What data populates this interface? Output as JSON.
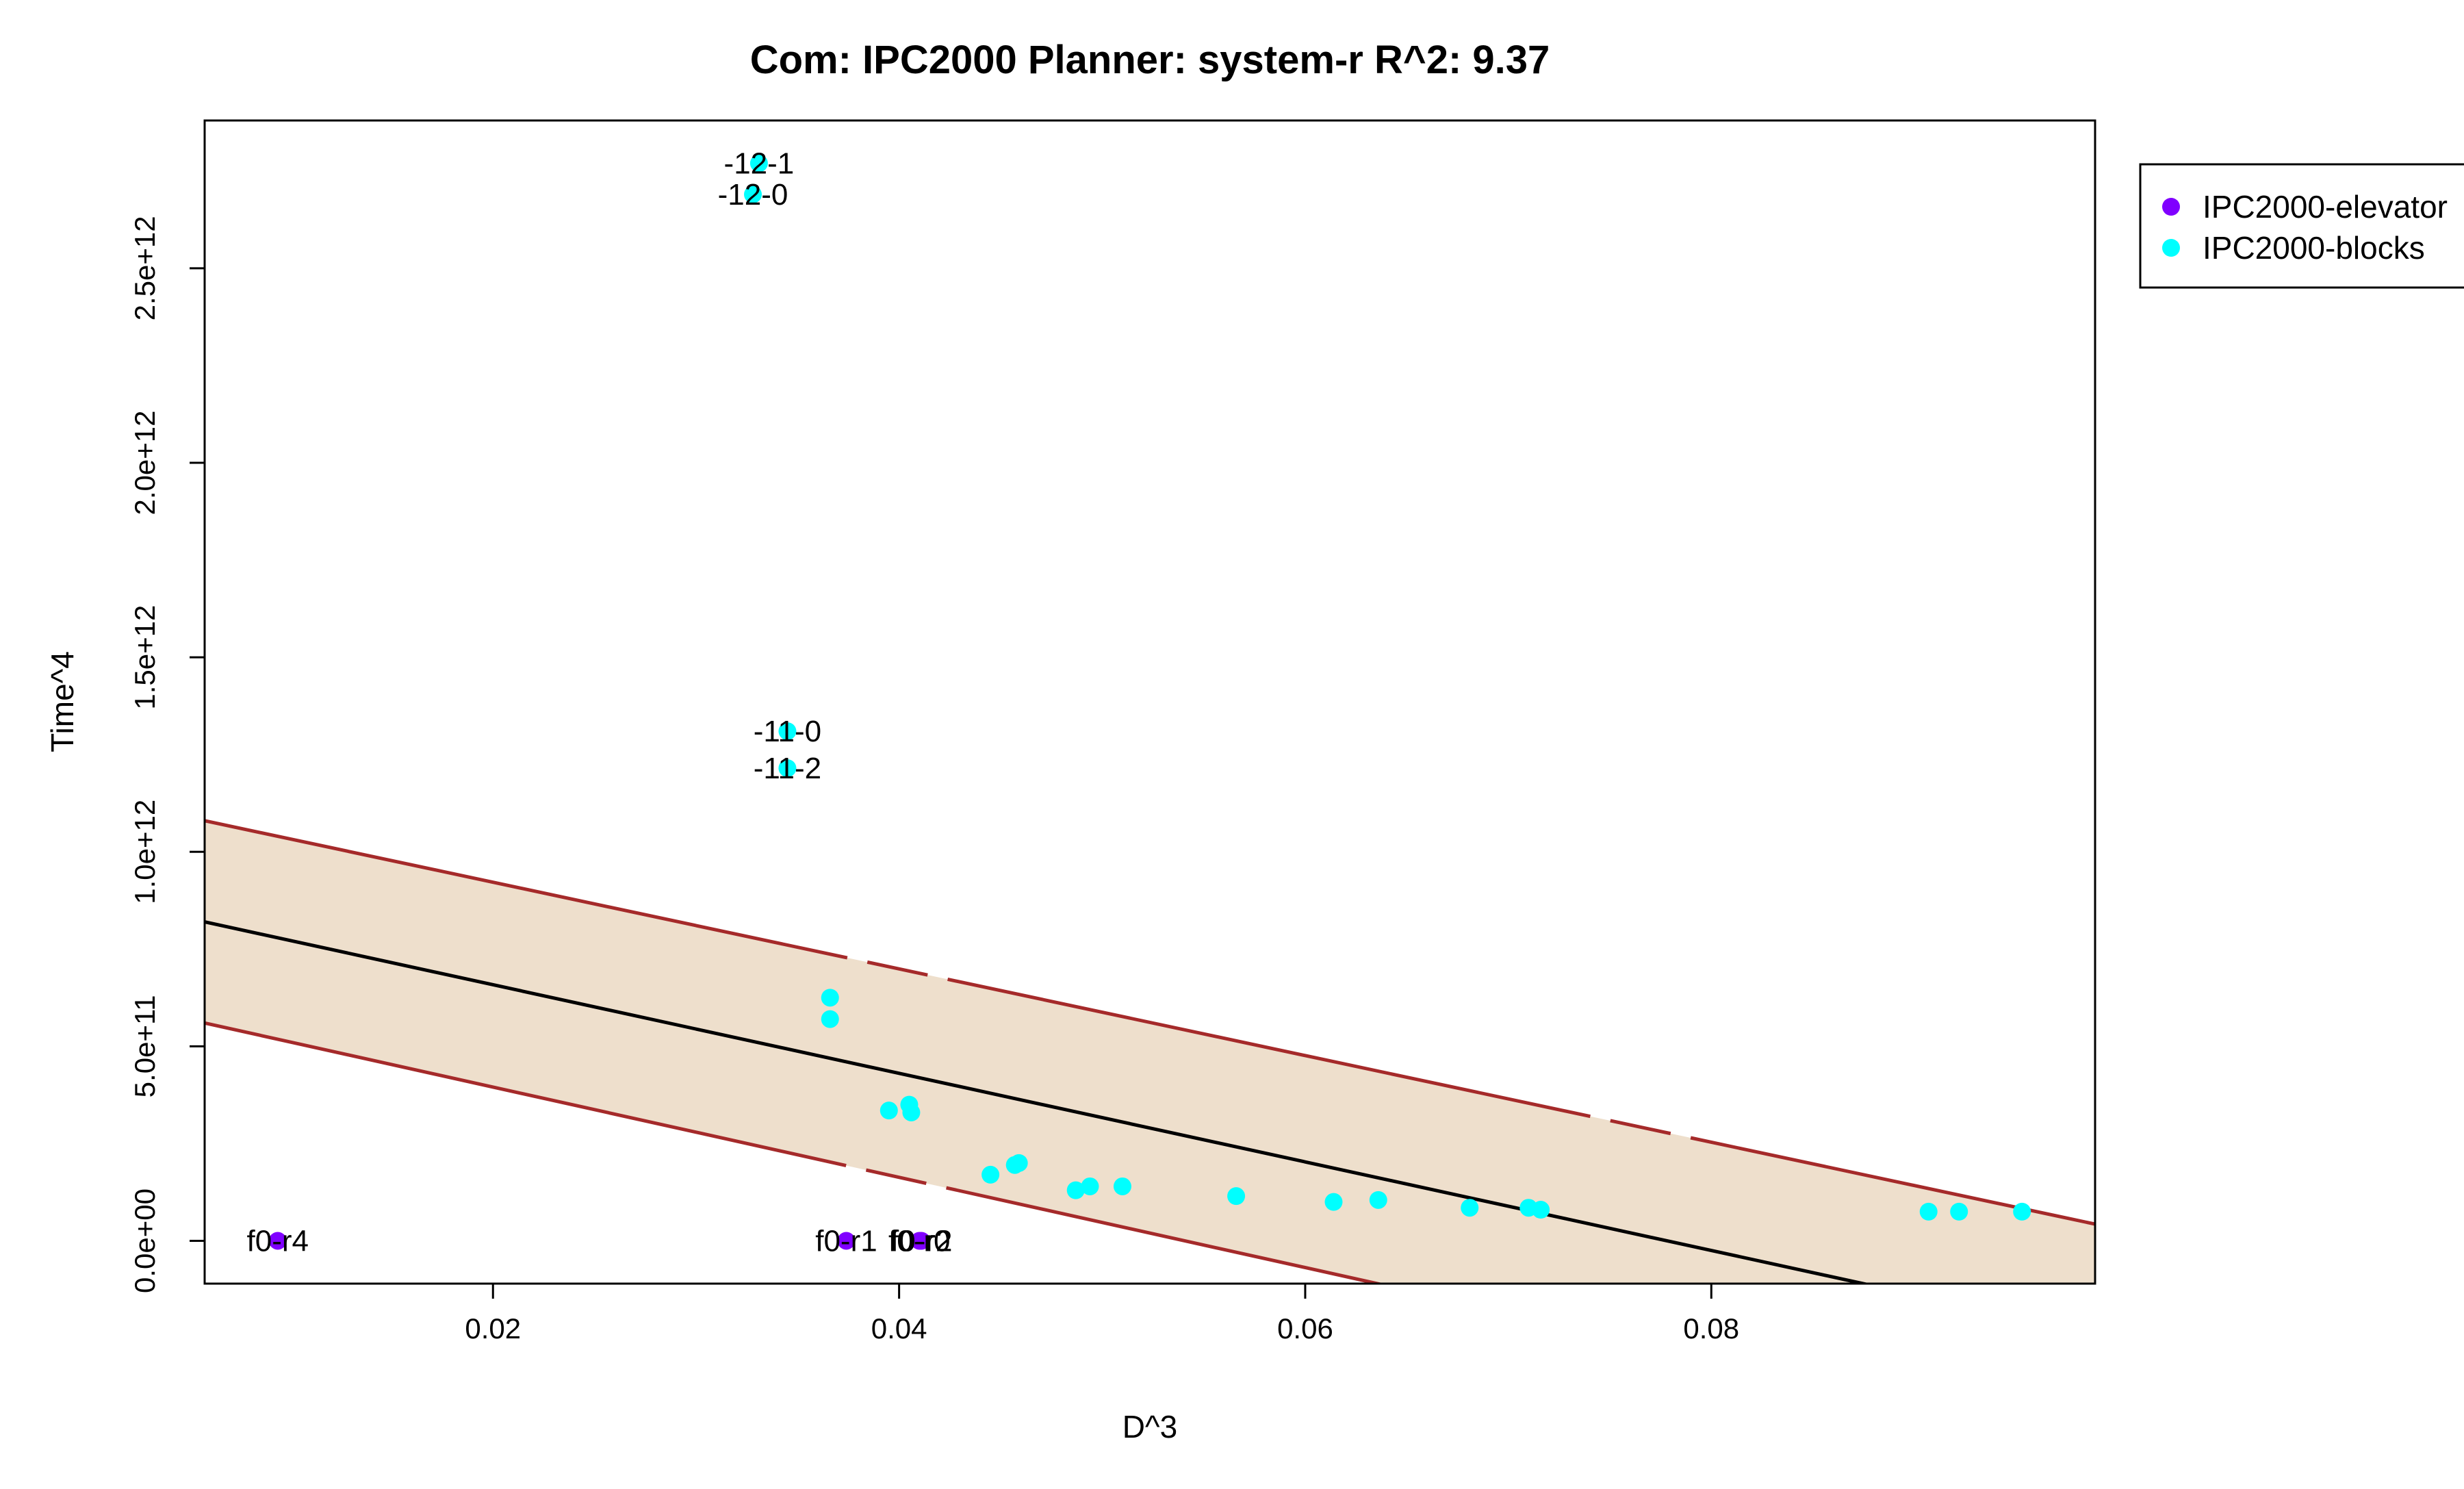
{
  "chart_data": {
    "type": "scatter",
    "title": "Com: IPC2000 Planner: system-r R^2: 9.37",
    "xlabel": "D^3",
    "ylabel": "Time^4",
    "xlim": [
      0.0058,
      0.0989
    ],
    "ylim": [
      -110000000000.0,
      2880000000000.0
    ],
    "x_ticks": [
      {
        "value": 0.02,
        "label": "0.02"
      },
      {
        "value": 0.04,
        "label": "0.04"
      },
      {
        "value": 0.06,
        "label": "0.06"
      },
      {
        "value": 0.08,
        "label": "0.08"
      }
    ],
    "y_ticks": [
      {
        "value": 0,
        "label": "0.0e+00"
      },
      {
        "value": 500000000000.0,
        "label": "5.0e+11"
      },
      {
        "value": 1000000000000.0,
        "label": "1.0e+12"
      },
      {
        "value": 1500000000000.0,
        "label": "1.5e+12"
      },
      {
        "value": 2000000000000.0,
        "label": "2.0e+12"
      },
      {
        "value": 2500000000000.0,
        "label": "2.5e+12"
      }
    ],
    "regression": {
      "fit": [
        [
          0.0058,
          820000000000.0
        ],
        [
          0.0989,
          -240000000000.0
        ]
      ],
      "upper": [
        [
          0.0058,
          1080000000000.0
        ],
        [
          0.0989,
          43000000000.0
        ]
      ],
      "lower": [
        [
          0.0058,
          560000000000.0
        ],
        [
          0.0989,
          -520000000000.0
        ]
      ],
      "fit_color": "#000000",
      "band_color": "#a52a2a",
      "band_fill": "#eedfcc"
    },
    "series": [
      {
        "name": "IPC2000-elevator",
        "color": "#8000ff",
        "points": [
          {
            "x": 0.0094,
            "y": 0,
            "label": "f0-r4"
          },
          {
            "x": 0.0374,
            "y": 0,
            "label": "f0-r1"
          },
          {
            "x": 0.041,
            "y": 0,
            "label": "f0-r0"
          },
          {
            "x": 0.0411,
            "y": 0,
            "label": "f0-r2"
          }
        ]
      },
      {
        "name": "IPC2000-blocks",
        "color": "#00ffff",
        "points": [
          {
            "x": 0.0331,
            "y": 2770000000000.0,
            "label": "-12-1"
          },
          {
            "x": 0.0328,
            "y": 2690000000000.0,
            "label": "-12-0"
          },
          {
            "x": 0.0345,
            "y": 1310000000000.0,
            "label": "-11-0"
          },
          {
            "x": 0.0345,
            "y": 1215000000000.0,
            "label": "-11-2"
          },
          {
            "x": 0.0366,
            "y": 625000000000.0
          },
          {
            "x": 0.0366,
            "y": 570000000000.0
          },
          {
            "x": 0.0395,
            "y": 335000000000.0
          },
          {
            "x": 0.0405,
            "y": 350000000000.0
          },
          {
            "x": 0.0406,
            "y": 330000000000.0
          },
          {
            "x": 0.0445,
            "y": 170000000000.0
          },
          {
            "x": 0.0457,
            "y": 195000000000.0
          },
          {
            "x": 0.0459,
            "y": 200000000000.0
          },
          {
            "x": 0.0487,
            "y": 130000000000.0
          },
          {
            "x": 0.0494,
            "y": 140000000000.0
          },
          {
            "x": 0.051,
            "y": 140000000000.0
          },
          {
            "x": 0.0566,
            "y": 115000000000.0
          },
          {
            "x": 0.0614,
            "y": 100000000000.0
          },
          {
            "x": 0.0636,
            "y": 105000000000.0
          },
          {
            "x": 0.0681,
            "y": 85000000000.0
          },
          {
            "x": 0.071,
            "y": 85000000000.0
          },
          {
            "x": 0.0716,
            "y": 80000000000.0
          },
          {
            "x": 0.0907,
            "y": 75000000000.0
          },
          {
            "x": 0.0922,
            "y": 75000000000.0
          },
          {
            "x": 0.0953,
            "y": 75000000000.0
          }
        ]
      }
    ],
    "legend": {
      "placement": "top-right, outside plot",
      "entries": [
        "IPC2000-elevator",
        "IPC2000-blocks"
      ]
    }
  }
}
